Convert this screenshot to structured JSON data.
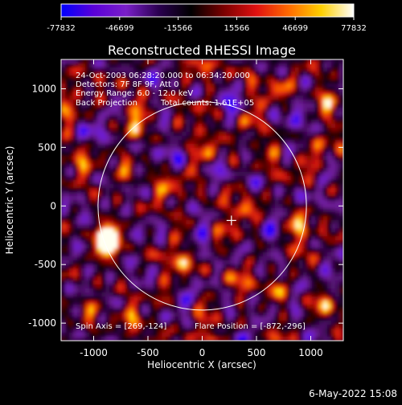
{
  "colorbar": {
    "ticks": [
      "-77832",
      "-46699",
      "-15566",
      "15566",
      "46699",
      "77832"
    ],
    "tick_values": [
      -77832,
      -46699,
      -15566,
      15566,
      46699,
      77832
    ],
    "range": [
      -77832,
      77832
    ],
    "colors": [
      "#0000ff",
      "#5a00d8",
      "#7a1fc8",
      "#2a0050",
      "#000000",
      "#7a0000",
      "#e01010",
      "#ff6a00",
      "#ffd000",
      "#ffffff"
    ]
  },
  "info": {
    "line1": "24-Oct-2003 06:28:20.000 to 06:34:20.000",
    "line2": "Detectors: 7F 8F 9F, Att 0",
    "line3": "Energy Range: 6.0 - 12.0 keV",
    "line4_left": "Back Projection",
    "line4_right": "Total counts: 1.61E+05",
    "spin_axis": "Spin Axis = [269,-124]",
    "flare_position": "Flare Position = [-872,-296]"
  },
  "footer": {
    "date": "6-May-2022 15:08"
  },
  "chart_data": {
    "type": "heatmap",
    "title": "Reconstructed RHESSI Image",
    "xlabel": "Heliocentric X (arcsec)",
    "ylabel": "Heliocentric Y (arcsec)",
    "xlim": [
      -1300,
      1300
    ],
    "ylim": [
      -1150,
      1250
    ],
    "xticks": [
      -1000,
      -500,
      0,
      500,
      1000
    ],
    "xtick_labels": [
      "-1000",
      "-500",
      "0",
      "500",
      "1000"
    ],
    "yticks": [
      -1000,
      -500,
      0,
      500,
      1000
    ],
    "ytick_labels": [
      "-1000",
      "-500",
      "0",
      "500",
      "1000"
    ],
    "solar_disk": {
      "center": [
        0,
        0
      ],
      "radius_arcsec": 960
    },
    "spin_axis": [
      269,
      -124
    ],
    "flare_position": [
      -872,
      -296
    ],
    "colormap": "blue-purple-black-red-yellow-white"
  }
}
